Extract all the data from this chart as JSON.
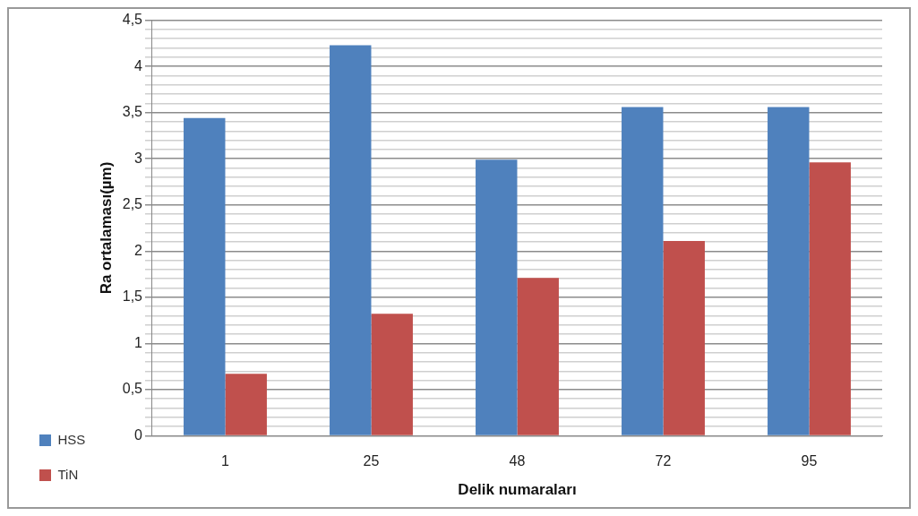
{
  "chart_data": {
    "type": "bar",
    "xlabel": "Delik numaraları",
    "ylabel": "Ra ortalaması(µm)",
    "categories": [
      "1",
      "25",
      "48",
      "72",
      "95"
    ],
    "series": [
      {
        "name": "HSS",
        "color": "#4f81bd",
        "values": [
          3.44,
          4.23,
          2.99,
          3.56,
          3.56
        ]
      },
      {
        "name": "TiN",
        "color": "#c0504d",
        "values": [
          0.67,
          1.32,
          1.71,
          2.11,
          2.96
        ]
      }
    ],
    "ylim": [
      0,
      4.5
    ],
    "yticks": [
      {
        "value": 0,
        "label": "0"
      },
      {
        "value": 0.1,
        "label": null
      },
      {
        "value": 0.2,
        "label": null
      },
      {
        "value": 0.3,
        "label": null
      },
      {
        "value": 0.4,
        "label": null
      },
      {
        "value": 0.5,
        "label": "0,5"
      },
      {
        "value": 0.6,
        "label": null
      },
      {
        "value": 0.7,
        "label": null
      },
      {
        "value": 0.8,
        "label": null
      },
      {
        "value": 0.9,
        "label": null
      },
      {
        "value": 1,
        "label": "1"
      },
      {
        "value": 1.1,
        "label": null
      },
      {
        "value": 1.2,
        "label": null
      },
      {
        "value": 1.3,
        "label": null
      },
      {
        "value": 1.4,
        "label": null
      },
      {
        "value": 1.5,
        "label": "1,5"
      },
      {
        "value": 1.6,
        "label": null
      },
      {
        "value": 1.7,
        "label": null
      },
      {
        "value": 1.8,
        "label": null
      },
      {
        "value": 1.9,
        "label": null
      },
      {
        "value": 2,
        "label": "2"
      },
      {
        "value": 2.1,
        "label": null
      },
      {
        "value": 2.2,
        "label": null
      },
      {
        "value": 2.3,
        "label": null
      },
      {
        "value": 2.4,
        "label": null
      },
      {
        "value": 2.5,
        "label": "2,5"
      },
      {
        "value": 2.6,
        "label": null
      },
      {
        "value": 2.7,
        "label": null
      },
      {
        "value": 2.8,
        "label": null
      },
      {
        "value": 2.9,
        "label": null
      },
      {
        "value": 3,
        "label": "3"
      },
      {
        "value": 3.1,
        "label": null
      },
      {
        "value": 3.2,
        "label": null
      },
      {
        "value": 3.3,
        "label": null
      },
      {
        "value": 3.4,
        "label": null
      },
      {
        "value": 3.5,
        "label": "3,5"
      },
      {
        "value": 3.6,
        "label": null
      },
      {
        "value": 3.7,
        "label": null
      },
      {
        "value": 3.8,
        "label": null
      },
      {
        "value": 3.9,
        "label": null
      },
      {
        "value": 4,
        "label": "4"
      },
      {
        "value": 4.1,
        "label": null
      },
      {
        "value": 4.2,
        "label": null
      },
      {
        "value": 4.3,
        "label": null
      },
      {
        "value": 4.4,
        "label": null
      },
      {
        "value": 4.5,
        "label": "4,5"
      }
    ],
    "grid": "y",
    "legend": "bottom left"
  }
}
